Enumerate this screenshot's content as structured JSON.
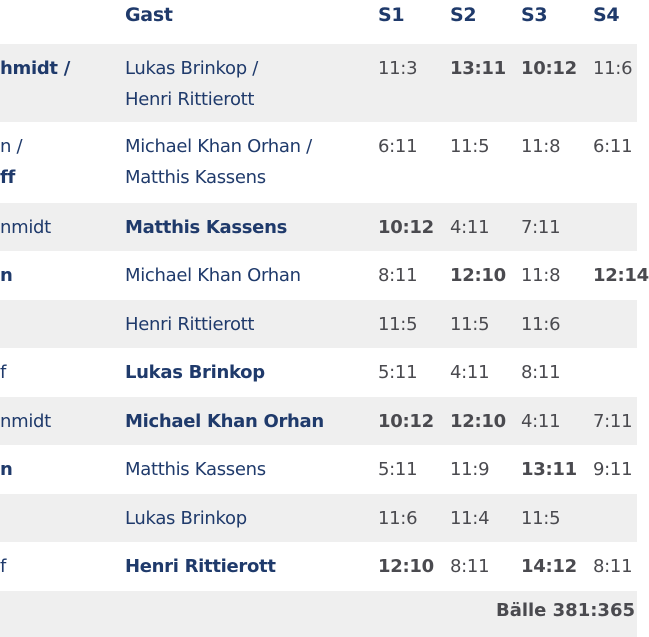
{
  "header": {
    "guest": "Gast",
    "s1": "S1",
    "s2": "S2",
    "s3": "S3",
    "s4": "S4"
  },
  "rows": [
    {
      "home": [
        "hmidt /",
        ""
      ],
      "home_bold": [
        true,
        false
      ],
      "guest": [
        "Lukas Brinkop /",
        "Henri Rittierott"
      ],
      "guest_bold": false,
      "sets": [
        "11:3",
        "13:11",
        "10:12",
        "11:6"
      ],
      "bold": [
        false,
        true,
        true,
        false
      ]
    },
    {
      "home": [
        "n /",
        "ff"
      ],
      "home_bold": [
        false,
        true
      ],
      "guest": [
        "Michael Khan Orhan /",
        "Matthis Kassens"
      ],
      "guest_bold": false,
      "sets": [
        "6:11",
        "11:5",
        "11:8",
        "6:11"
      ],
      "bold": [
        false,
        false,
        false,
        false
      ]
    },
    {
      "home": [
        "nmidt"
      ],
      "home_bold": [
        false
      ],
      "guest": [
        "Matthis Kassens"
      ],
      "guest_bold": true,
      "sets": [
        "10:12",
        "4:11",
        "7:11",
        ""
      ],
      "bold": [
        true,
        false,
        false,
        false
      ]
    },
    {
      "home": [
        "n"
      ],
      "home_bold": [
        true
      ],
      "guest": [
        "Michael Khan Orhan"
      ],
      "guest_bold": false,
      "sets": [
        "8:11",
        "12:10",
        "11:8",
        "12:14"
      ],
      "bold": [
        false,
        true,
        false,
        true
      ]
    },
    {
      "home": [
        ""
      ],
      "home_bold": [
        false
      ],
      "guest": [
        "Henri Rittierott"
      ],
      "guest_bold": false,
      "sets": [
        "11:5",
        "11:5",
        "11:6",
        ""
      ],
      "bold": [
        false,
        false,
        false,
        false
      ]
    },
    {
      "home": [
        "f"
      ],
      "home_bold": [
        false
      ],
      "guest": [
        "Lukas Brinkop"
      ],
      "guest_bold": true,
      "sets": [
        "5:11",
        "4:11",
        "8:11",
        ""
      ],
      "bold": [
        false,
        false,
        false,
        false
      ]
    },
    {
      "home": [
        "nmidt"
      ],
      "home_bold": [
        false
      ],
      "guest": [
        "Michael Khan Orhan"
      ],
      "guest_bold": true,
      "sets": [
        "10:12",
        "12:10",
        "4:11",
        "7:11"
      ],
      "bold": [
        true,
        true,
        false,
        false
      ]
    },
    {
      "home": [
        "n"
      ],
      "home_bold": [
        true
      ],
      "guest": [
        "Matthis Kassens"
      ],
      "guest_bold": false,
      "sets": [
        "5:11",
        "11:9",
        "13:11",
        "9:11"
      ],
      "bold": [
        false,
        false,
        true,
        false
      ]
    },
    {
      "home": [
        ""
      ],
      "home_bold": [
        false
      ],
      "guest": [
        "Lukas Brinkop"
      ],
      "guest_bold": false,
      "sets": [
        "11:6",
        "11:4",
        "11:5",
        ""
      ],
      "bold": [
        false,
        false,
        false,
        false
      ]
    },
    {
      "home": [
        "f"
      ],
      "home_bold": [
        false
      ],
      "guest": [
        "Henri Rittierott"
      ],
      "guest_bold": true,
      "sets": [
        "12:10",
        "8:11",
        "14:12",
        "8:11"
      ],
      "bold": [
        true,
        false,
        true,
        false
      ]
    }
  ],
  "footer": {
    "balls": "Bälle 381:365"
  }
}
